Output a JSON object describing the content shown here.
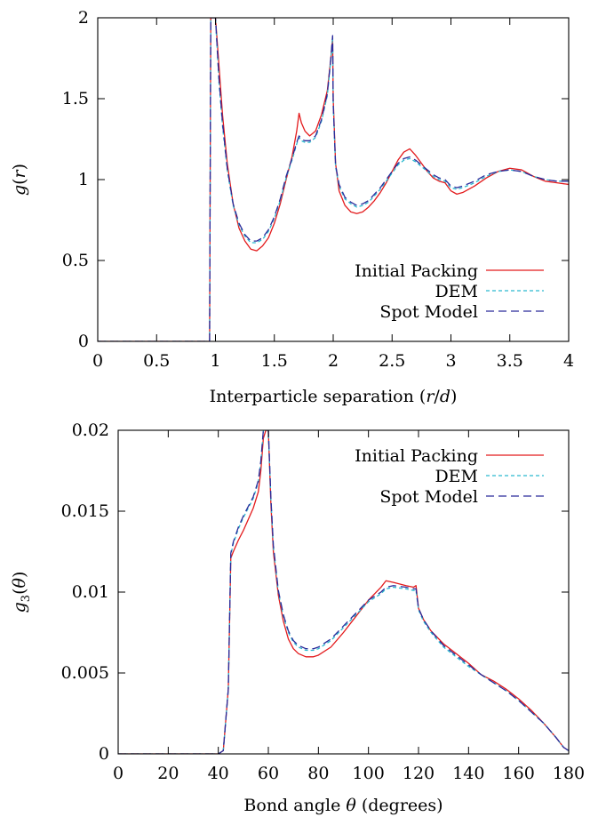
{
  "chart_data": [
    {
      "type": "line",
      "xlabel": "Interparticle separation (r/d)",
      "ylabel": "g(r)",
      "xlim": [
        0,
        4
      ],
      "ylim": [
        0,
        2
      ],
      "xticks": [
        "0",
        "0.5",
        "1",
        "1.5",
        "2",
        "2.5",
        "3",
        "3.5",
        "4"
      ],
      "yticks": [
        "0",
        "0.5",
        "1",
        "1.5",
        "2"
      ],
      "xtick_values": [
        0,
        0.5,
        1,
        1.5,
        2,
        2.5,
        3,
        3.5,
        4
      ],
      "ytick_values": [
        0,
        0.5,
        1,
        1.5,
        2
      ],
      "legend_position": "bottom-right",
      "grid": false,
      "series": [
        {
          "name": "Initial Packing",
          "color": "#e31a1c",
          "dash": "solid",
          "x": [
            0,
            0.95,
            0.96,
            0.97,
            0.98,
            0.99,
            1.0,
            1.03,
            1.06,
            1.1,
            1.15,
            1.2,
            1.25,
            1.3,
            1.35,
            1.4,
            1.45,
            1.5,
            1.55,
            1.6,
            1.65,
            1.69,
            1.71,
            1.73,
            1.76,
            1.8,
            1.85,
            1.9,
            1.95,
            1.98,
            1.995,
            2.0,
            2.02,
            2.05,
            2.1,
            2.15,
            2.2,
            2.25,
            2.3,
            2.35,
            2.4,
            2.45,
            2.5,
            2.55,
            2.6,
            2.65,
            2.7,
            2.75,
            2.8,
            2.85,
            2.9,
            2.95,
            3.0,
            3.05,
            3.1,
            3.2,
            3.3,
            3.4,
            3.5,
            3.6,
            3.7,
            3.8,
            3.9,
            4.0
          ],
          "y": [
            0,
            0,
            2.0,
            2.0,
            2.0,
            2.0,
            2.0,
            1.7,
            1.4,
            1.1,
            0.85,
            0.7,
            0.62,
            0.57,
            0.56,
            0.59,
            0.64,
            0.73,
            0.85,
            1.0,
            1.14,
            1.3,
            1.41,
            1.35,
            1.3,
            1.27,
            1.3,
            1.4,
            1.55,
            1.75,
            1.88,
            1.5,
            1.1,
            0.93,
            0.84,
            0.8,
            0.79,
            0.8,
            0.83,
            0.87,
            0.92,
            0.98,
            1.05,
            1.12,
            1.17,
            1.19,
            1.15,
            1.1,
            1.05,
            1.01,
            0.99,
            0.98,
            0.93,
            0.91,
            0.92,
            0.96,
            1.01,
            1.05,
            1.07,
            1.06,
            1.02,
            0.99,
            0.98,
            0.97
          ]
        },
        {
          "name": "DEM",
          "color": "#2bb9cf",
          "dash": "short-dash",
          "x": [
            0,
            0.95,
            0.96,
            0.97,
            0.98,
            0.99,
            1.0,
            1.03,
            1.06,
            1.1,
            1.15,
            1.2,
            1.25,
            1.3,
            1.35,
            1.4,
            1.45,
            1.5,
            1.55,
            1.6,
            1.65,
            1.69,
            1.71,
            1.73,
            1.76,
            1.8,
            1.85,
            1.9,
            1.95,
            1.98,
            1.995,
            2.0,
            2.02,
            2.05,
            2.1,
            2.15,
            2.2,
            2.25,
            2.3,
            2.35,
            2.4,
            2.45,
            2.5,
            2.55,
            2.6,
            2.65,
            2.7,
            2.75,
            2.8,
            2.85,
            2.9,
            2.95,
            3.0,
            3.05,
            3.1,
            3.2,
            3.3,
            3.4,
            3.5,
            3.6,
            3.7,
            3.8,
            3.9,
            4.0
          ],
          "y": [
            0,
            0,
            2.0,
            2.0,
            2.0,
            2.0,
            2.0,
            1.6,
            1.33,
            1.06,
            0.84,
            0.72,
            0.65,
            0.61,
            0.61,
            0.63,
            0.68,
            0.76,
            0.87,
            1.01,
            1.12,
            1.22,
            1.26,
            1.24,
            1.23,
            1.23,
            1.26,
            1.36,
            1.52,
            1.74,
            1.88,
            1.46,
            1.08,
            0.96,
            0.88,
            0.85,
            0.83,
            0.84,
            0.86,
            0.9,
            0.94,
            0.99,
            1.04,
            1.09,
            1.12,
            1.13,
            1.11,
            1.08,
            1.05,
            1.02,
            1.0,
            0.99,
            0.95,
            0.94,
            0.95,
            0.98,
            1.02,
            1.05,
            1.06,
            1.05,
            1.02,
            1.0,
            0.99,
            0.99
          ]
        },
        {
          "name": "Spot Model",
          "color": "#2a2a9a",
          "dash": "long-dash",
          "x": [
            0,
            0.95,
            0.96,
            0.97,
            0.98,
            0.99,
            1.0,
            1.03,
            1.06,
            1.1,
            1.15,
            1.2,
            1.25,
            1.3,
            1.35,
            1.4,
            1.45,
            1.5,
            1.55,
            1.6,
            1.65,
            1.69,
            1.71,
            1.73,
            1.76,
            1.8,
            1.85,
            1.9,
            1.95,
            1.98,
            1.995,
            2.0,
            2.02,
            2.05,
            2.1,
            2.15,
            2.2,
            2.25,
            2.3,
            2.35,
            2.4,
            2.45,
            2.5,
            2.55,
            2.6,
            2.65,
            2.7,
            2.75,
            2.8,
            2.85,
            2.9,
            2.95,
            3.0,
            3.05,
            3.1,
            3.2,
            3.3,
            3.4,
            3.5,
            3.6,
            3.7,
            3.8,
            3.9,
            4.0
          ],
          "y": [
            0,
            0,
            2.0,
            2.0,
            2.0,
            2.0,
            2.0,
            1.62,
            1.35,
            1.07,
            0.85,
            0.73,
            0.66,
            0.62,
            0.62,
            0.64,
            0.69,
            0.77,
            0.88,
            1.02,
            1.13,
            1.23,
            1.27,
            1.25,
            1.24,
            1.24,
            1.27,
            1.37,
            1.53,
            1.75,
            1.89,
            1.47,
            1.09,
            0.97,
            0.89,
            0.86,
            0.84,
            0.85,
            0.87,
            0.91,
            0.95,
            1.0,
            1.05,
            1.1,
            1.13,
            1.14,
            1.12,
            1.09,
            1.06,
            1.03,
            1.01,
            1.0,
            0.96,
            0.95,
            0.96,
            0.99,
            1.03,
            1.05,
            1.06,
            1.05,
            1.02,
            1.0,
            0.99,
            0.99
          ]
        }
      ]
    },
    {
      "type": "line",
      "xlabel": "Bond angle θ (degrees)",
      "ylabel": "g3(θ)",
      "xlim": [
        0,
        180
      ],
      "ylim": [
        0,
        0.02
      ],
      "xticks": [
        "0",
        "20",
        "40",
        "60",
        "80",
        "100",
        "120",
        "140",
        "160",
        "180"
      ],
      "yticks": [
        "0",
        "0.005",
        "0.01",
        "0.015",
        "0.02"
      ],
      "xtick_values": [
        0,
        20,
        40,
        60,
        80,
        100,
        120,
        140,
        160,
        180
      ],
      "ytick_values": [
        0,
        0.005,
        0.01,
        0.015,
        0.02
      ],
      "legend_position": "top-right",
      "grid": false,
      "series": [
        {
          "name": "Initial Packing",
          "color": "#e31a1c",
          "dash": "solid",
          "x": [
            0,
            40,
            42,
            44,
            45,
            46,
            48,
            50,
            52,
            54,
            56,
            57,
            58,
            59,
            60,
            61,
            62,
            64,
            66,
            68,
            70,
            72,
            75,
            78,
            80,
            85,
            90,
            95,
            100,
            105,
            107,
            110,
            115,
            118,
            119,
            120,
            122,
            125,
            130,
            135,
            140,
            145,
            150,
            155,
            160,
            165,
            170,
            175,
            178,
            180
          ],
          "y": [
            0,
            0,
            0.0002,
            0.004,
            0.0121,
            0.0125,
            0.0132,
            0.0138,
            0.0145,
            0.0152,
            0.0162,
            0.0175,
            0.0195,
            0.02,
            0.02,
            0.0155,
            0.0125,
            0.0098,
            0.0082,
            0.0071,
            0.0065,
            0.0062,
            0.006,
            0.006,
            0.0061,
            0.0066,
            0.0075,
            0.0085,
            0.0095,
            0.0103,
            0.0107,
            0.0106,
            0.0104,
            0.0103,
            0.0104,
            0.009,
            0.0083,
            0.0076,
            0.0068,
            0.0062,
            0.0056,
            0.0049,
            0.0045,
            0.004,
            0.0034,
            0.0027,
            0.0019,
            0.001,
            0.0004,
            0.0002
          ]
        },
        {
          "name": "DEM",
          "color": "#2bb9cf",
          "dash": "short-dash",
          "x": [
            0,
            40,
            42,
            44,
            45,
            46,
            48,
            50,
            52,
            54,
            56,
            57,
            58,
            59,
            60,
            61,
            62,
            64,
            66,
            68,
            70,
            72,
            75,
            78,
            80,
            85,
            90,
            95,
            100,
            105,
            107,
            110,
            115,
            118,
            119,
            120,
            122,
            125,
            130,
            135,
            140,
            145,
            150,
            155,
            160,
            165,
            170,
            175,
            178,
            180
          ],
          "y": [
            0,
            0,
            0.0002,
            0.004,
            0.0123,
            0.013,
            0.0139,
            0.0146,
            0.0152,
            0.0158,
            0.0168,
            0.018,
            0.02,
            0.02,
            0.02,
            0.0158,
            0.0128,
            0.01,
            0.0085,
            0.0075,
            0.0069,
            0.0066,
            0.0064,
            0.0064,
            0.0065,
            0.007,
            0.0078,
            0.0086,
            0.0094,
            0.0099,
            0.0102,
            0.0103,
            0.0102,
            0.0101,
            0.0101,
            0.0089,
            0.0082,
            0.0075,
            0.0066,
            0.006,
            0.0054,
            0.0049,
            0.0044,
            0.0039,
            0.0033,
            0.0026,
            0.0019,
            0.001,
            0.0004,
            0.0002
          ]
        },
        {
          "name": "Spot Model",
          "color": "#2a2a9a",
          "dash": "long-dash",
          "x": [
            0,
            40,
            42,
            44,
            45,
            46,
            48,
            50,
            52,
            54,
            56,
            57,
            58,
            59,
            60,
            61,
            62,
            64,
            66,
            68,
            70,
            72,
            75,
            78,
            80,
            85,
            90,
            95,
            100,
            105,
            107,
            110,
            115,
            118,
            119,
            120,
            122,
            125,
            130,
            135,
            140,
            145,
            150,
            155,
            160,
            165,
            170,
            175,
            178,
            180
          ],
          "y": [
            0,
            0,
            0.0002,
            0.004,
            0.0124,
            0.0131,
            0.014,
            0.0147,
            0.0153,
            0.0159,
            0.0169,
            0.0181,
            0.02,
            0.02,
            0.02,
            0.0159,
            0.0129,
            0.0101,
            0.0086,
            0.0076,
            0.007,
            0.0067,
            0.0065,
            0.0065,
            0.0066,
            0.0071,
            0.0079,
            0.0087,
            0.0095,
            0.01,
            0.0103,
            0.0104,
            0.0103,
            0.0102,
            0.0102,
            0.009,
            0.0083,
            0.0076,
            0.0067,
            0.0061,
            0.0055,
            0.0049,
            0.0044,
            0.0039,
            0.0033,
            0.0026,
            0.0019,
            0.001,
            0.0004,
            0.0002
          ]
        }
      ]
    }
  ]
}
